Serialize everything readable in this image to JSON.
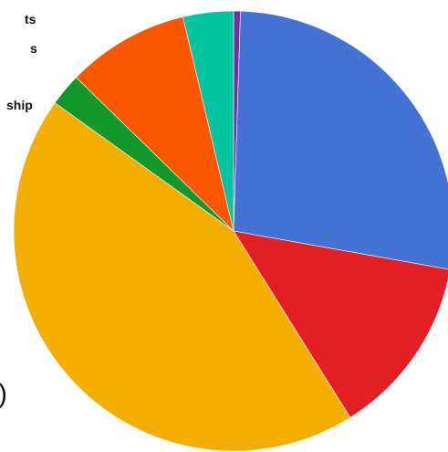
{
  "chart_data": {
    "type": "pie",
    "title": "",
    "start_angle_deg": 0,
    "direction": "clockwise",
    "slices": [
      {
        "value": 0.5,
        "color": "#7030a0"
      },
      {
        "value": 27.3,
        "color": "#4472d4"
      },
      {
        "value": 13.3,
        "color": "#e31f26"
      },
      {
        "value": 43.8,
        "color": "#f4ae00"
      },
      {
        "value": 2.4,
        "color": "#12982a"
      },
      {
        "value": 9.0,
        "color": "#fb5600"
      },
      {
        "value": 3.7,
        "color": "#00c5a0"
      }
    ],
    "label_fragments": [
      {
        "text": "ts"
      },
      {
        "text": "s"
      },
      {
        "text": "ship"
      },
      {
        "text": ")"
      }
    ]
  }
}
